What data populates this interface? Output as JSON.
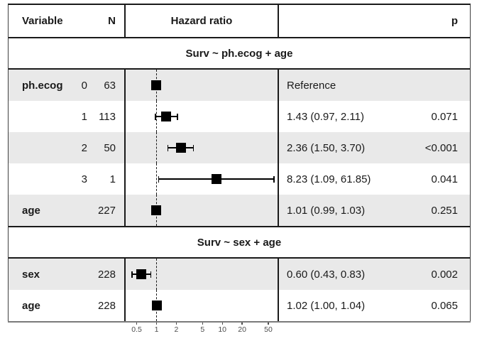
{
  "header": {
    "variable": "Variable",
    "n": "N",
    "hazard_ratio": "Hazard ratio",
    "p": "p"
  },
  "colors": {
    "border": "#1a1a1a",
    "row_shade": "#e9e9e9",
    "marker": "#000000",
    "axis_text": "#4d4d4d"
  },
  "chart_data": {
    "type": "forest",
    "x_scale": "log10",
    "x_ticks": [
      0.5,
      1,
      2,
      5,
      10,
      20,
      50
    ],
    "reference_line": 1,
    "columns": [
      "Variable",
      "N",
      "Hazard ratio",
      "p"
    ],
    "sections": [
      {
        "title": "Surv ~ ph.ecog + age",
        "rows": [
          {
            "variable": "ph.ecog",
            "level": "0",
            "n": "63",
            "hr": 1.0,
            "ci_low": null,
            "ci_high": null,
            "estimate_label": "Reference",
            "p": "",
            "shaded": true
          },
          {
            "variable": "",
            "level": "1",
            "n": "113",
            "hr": 1.43,
            "ci_low": 0.97,
            "ci_high": 2.11,
            "estimate_label": "1.43 (0.97, 2.11)",
            "p": "0.071",
            "shaded": false
          },
          {
            "variable": "",
            "level": "2",
            "n": "50",
            "hr": 2.36,
            "ci_low": 1.5,
            "ci_high": 3.7,
            "estimate_label": "2.36 (1.50, 3.70)",
            "p": "<0.001",
            "shaded": true
          },
          {
            "variable": "",
            "level": "3",
            "n": "1",
            "hr": 8.23,
            "ci_low": 1.09,
            "ci_high": 61.85,
            "estimate_label": "8.23 (1.09, 61.85)",
            "p": "0.041",
            "shaded": false
          },
          {
            "variable": "age",
            "level": "",
            "n": "227",
            "hr": 1.01,
            "ci_low": 0.99,
            "ci_high": 1.03,
            "estimate_label": "1.01 (0.99, 1.03)",
            "p": "0.251",
            "shaded": true
          }
        ]
      },
      {
        "title": "Surv ~ sex + age",
        "rows": [
          {
            "variable": "sex",
            "level": "",
            "n": "228",
            "hr": 0.6,
            "ci_low": 0.43,
            "ci_high": 0.83,
            "estimate_label": "0.60 (0.43, 0.83)",
            "p": "0.002",
            "shaded": true
          },
          {
            "variable": "age",
            "level": "",
            "n": "228",
            "hr": 1.02,
            "ci_low": 1.0,
            "ci_high": 1.04,
            "estimate_label": "1.02 (1.00, 1.04)",
            "p": "0.065",
            "shaded": false
          }
        ]
      }
    ]
  }
}
